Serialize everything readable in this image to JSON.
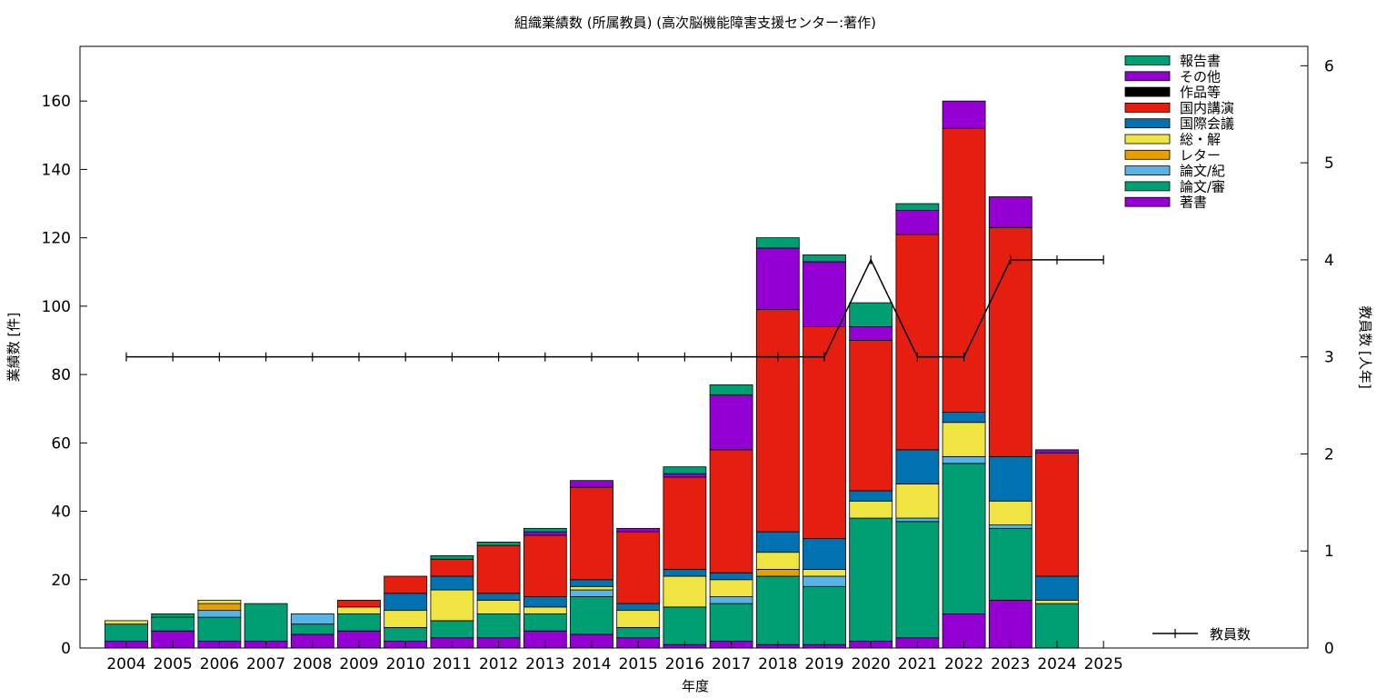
{
  "chart_data": {
    "type": "bar",
    "stacked": true,
    "title": "組織業績数 (所属教員) (高次脳機能障害支援センター:著作)",
    "xlabel": "年度",
    "ylabel": "業績数 [件]",
    "y2label": "教員数 [人年]",
    "ylim": [
      0,
      176
    ],
    "y2lim": [
      0,
      6.2
    ],
    "yticks": [
      0,
      20,
      40,
      60,
      80,
      100,
      120,
      140,
      160
    ],
    "y2ticks": [
      0,
      1,
      2,
      3,
      4,
      5,
      6
    ],
    "categories": [
      "2004",
      "2005",
      "2006",
      "2007",
      "2008",
      "2009",
      "2010",
      "2011",
      "2012",
      "2013",
      "2014",
      "2015",
      "2016",
      "2017",
      "2018",
      "2019",
      "2020",
      "2021",
      "2022",
      "2023",
      "2024",
      "2025"
    ],
    "series": [
      {
        "name": "著書",
        "color": "#9400d3",
        "values": [
          2,
          5,
          2,
          2,
          4,
          5,
          2,
          3,
          3,
          5,
          4,
          3,
          1,
          2,
          1,
          1,
          2,
          3,
          10,
          14,
          0,
          0
        ]
      },
      {
        "name": "論文/審",
        "color": "#009e73",
        "values": [
          5,
          4,
          7,
          11,
          3,
          5,
          4,
          5,
          7,
          5,
          11,
          3,
          11,
          11,
          20,
          17,
          36,
          34,
          44,
          21,
          13,
          0
        ]
      },
      {
        "name": "論文/紀",
        "color": "#56b4e9",
        "values": [
          0,
          0,
          2,
          0,
          3,
          0,
          0,
          0,
          0,
          0,
          2,
          0,
          0,
          2,
          0,
          3,
          0,
          1,
          2,
          1,
          0,
          0
        ]
      },
      {
        "name": "レター",
        "color": "#e69f00",
        "values": [
          0,
          0,
          2,
          0,
          0,
          0,
          0,
          0,
          0,
          0,
          0,
          0,
          0,
          0,
          2,
          0,
          0,
          0,
          0,
          0,
          0,
          0
        ]
      },
      {
        "name": "総・解",
        "color": "#f0e442",
        "values": [
          1,
          0,
          1,
          0,
          0,
          2,
          5,
          9,
          4,
          2,
          1,
          5,
          9,
          5,
          5,
          2,
          5,
          10,
          10,
          7,
          1,
          0
        ]
      },
      {
        "name": "国際会議",
        "color": "#0072b2",
        "values": [
          0,
          0,
          0,
          0,
          0,
          0,
          5,
          4,
          2,
          3,
          2,
          2,
          2,
          2,
          6,
          9,
          3,
          10,
          3,
          13,
          7,
          0
        ]
      },
      {
        "name": "国内講演",
        "color": "#e51e10",
        "values": [
          0,
          0,
          0,
          0,
          0,
          2,
          5,
          5,
          14,
          18,
          27,
          21,
          27,
          36,
          65,
          62,
          44,
          63,
          83,
          67,
          36,
          0
        ]
      },
      {
        "name": "作品等",
        "color": "#000000",
        "values": [
          0,
          0,
          0,
          0,
          0,
          0,
          0,
          0,
          0,
          0,
          0,
          0,
          0,
          0,
          0,
          0,
          0,
          0,
          0,
          0,
          0,
          0
        ]
      },
      {
        "name": "その他",
        "color": "#9400d3",
        "values": [
          0,
          0,
          0,
          0,
          0,
          0,
          0,
          0,
          0,
          1,
          2,
          1,
          1,
          16,
          18,
          19,
          4,
          7,
          8,
          9,
          1,
          0
        ]
      },
      {
        "name": "報告書",
        "color": "#009e73",
        "values": [
          0,
          1,
          0,
          0,
          0,
          0,
          0,
          1,
          1,
          1,
          0,
          0,
          2,
          3,
          3,
          2,
          7,
          2,
          0,
          0,
          0,
          0
        ]
      }
    ],
    "line_series": {
      "name": "教員数",
      "axis": "y2",
      "color": "#000000",
      "x": [
        "2004",
        "2005",
        "2006",
        "2007",
        "2008",
        "2009",
        "2010",
        "2011",
        "2012",
        "2013",
        "2014",
        "2015",
        "2016",
        "2017",
        "2018",
        "2019",
        "2020",
        "2021",
        "2022",
        "2023",
        "2024",
        "2025"
      ],
      "values": [
        3,
        3,
        3,
        3,
        3,
        3,
        3,
        3,
        3,
        3,
        3,
        3,
        3,
        3,
        3,
        3,
        4,
        3,
        3,
        4,
        4,
        4
      ]
    },
    "legend_placement": "top-right",
    "line_legend_placement": "bottom-right",
    "grid": false
  }
}
